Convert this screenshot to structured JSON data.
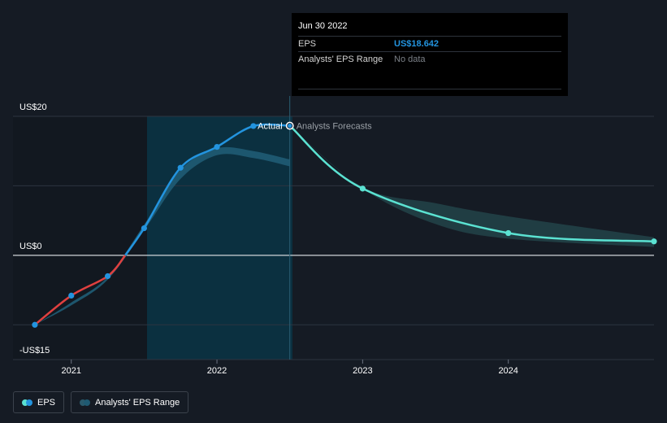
{
  "chart_data": {
    "type": "line",
    "title": "EPS",
    "y_unit": "US$",
    "ylim": [
      -15,
      20
    ],
    "y_ticks": [
      {
        "value": 20,
        "label": "US$20"
      },
      {
        "value": 0,
        "label": "US$0"
      },
      {
        "value": -15,
        "label": "-US$15"
      }
    ],
    "x_ticks": [
      {
        "value": 2021.0,
        "label": "2021"
      },
      {
        "value": 2022.0,
        "label": "2022"
      },
      {
        "value": 2023.0,
        "label": "2023"
      },
      {
        "value": 2024.0,
        "label": "2024"
      }
    ],
    "xlim": [
      2020.6,
      2025.0
    ],
    "divider_x": 2022.5,
    "highlight_start": 2021.5,
    "series": [
      {
        "name": "EPS (Actual)",
        "color_negative": "#e0403f",
        "color_positive": "#2394df",
        "points": [
          {
            "x": 2020.75,
            "y": -10.0
          },
          {
            "x": 2021.0,
            "y": -5.8
          },
          {
            "x": 2021.25,
            "y": -3.0
          },
          {
            "x": 2021.5,
            "y": 3.9
          },
          {
            "x": 2021.75,
            "y": 12.6
          },
          {
            "x": 2022.0,
            "y": 15.6
          },
          {
            "x": 2022.25,
            "y": 18.6
          },
          {
            "x": 2022.5,
            "y": 18.642
          }
        ]
      },
      {
        "name": "EPS (Analysts Forecasts)",
        "color": "#5be2d2",
        "points": [
          {
            "x": 2022.5,
            "y": 18.642
          },
          {
            "x": 2023.0,
            "y": 9.6
          },
          {
            "x": 2024.0,
            "y": 3.2
          },
          {
            "x": 2025.0,
            "y": 2.0
          }
        ]
      }
    ],
    "range_band": {
      "name": "Analysts' EPS Range",
      "past": {
        "low": [
          {
            "x": 2020.75,
            "y": -10.0
          },
          {
            "x": 2021.0,
            "y": -7.2
          },
          {
            "x": 2021.25,
            "y": -3.5
          },
          {
            "x": 2021.5,
            "y": 3.6
          },
          {
            "x": 2021.75,
            "y": 11.0
          },
          {
            "x": 2022.0,
            "y": 14.4
          },
          {
            "x": 2022.25,
            "y": 14.0
          },
          {
            "x": 2022.5,
            "y": 12.8
          }
        ],
        "high": [
          {
            "x": 2020.75,
            "y": -10.0
          },
          {
            "x": 2021.0,
            "y": -6.8
          },
          {
            "x": 2021.25,
            "y": -3.1
          },
          {
            "x": 2021.5,
            "y": 4.4
          },
          {
            "x": 2021.75,
            "y": 12.3
          },
          {
            "x": 2022.0,
            "y": 15.4
          },
          {
            "x": 2022.25,
            "y": 15.0
          },
          {
            "x": 2022.5,
            "y": 13.8
          }
        ]
      },
      "forecast": {
        "low": [
          {
            "x": 2022.5,
            "y": 18.642
          },
          {
            "x": 2023.0,
            "y": 9.6
          },
          {
            "x": 2023.5,
            "y": 4.5
          },
          {
            "x": 2024.0,
            "y": 2.4
          },
          {
            "x": 2025.0,
            "y": 1.2
          }
        ],
        "high": [
          {
            "x": 2022.5,
            "y": 18.642
          },
          {
            "x": 2023.0,
            "y": 9.8
          },
          {
            "x": 2023.5,
            "y": 7.5
          },
          {
            "x": 2024.0,
            "y": 5.6
          },
          {
            "x": 2025.0,
            "y": 2.6
          }
        ]
      }
    },
    "annotations": {
      "actual_label": "Actual",
      "forecast_label": "Analysts Forecasts"
    }
  },
  "tooltip": {
    "date": "Jun 30 2022",
    "rows": [
      {
        "key": "EPS",
        "value": "US$18.642"
      },
      {
        "key": "Analysts' EPS Range",
        "value": "No data"
      }
    ]
  },
  "legend": {
    "eps_label": "EPS",
    "range_label": "Analysts' EPS Range"
  },
  "colors": {
    "background": "#151b24",
    "highlight": "#0b3040",
    "past_shade": "#111820",
    "grid": "#2d3440",
    "zero_line": "#d0d4d8",
    "actual": "#2394df",
    "negative": "#e0403f",
    "forecast": "#5be2d2",
    "band": "#1f5a72",
    "band_forecast": "#2a5a5c"
  }
}
